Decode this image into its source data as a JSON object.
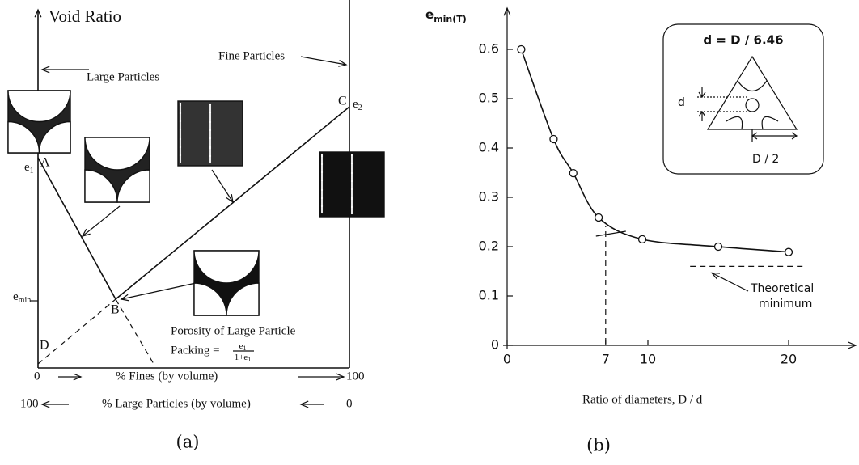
{
  "diagram": {
    "y_axis_label": "Void Ratio",
    "fine_label": "Fine Particles",
    "large_label": "Large Particles",
    "point_a": "A",
    "point_b": "B",
    "point_c": "C",
    "point_d": "D",
    "e1": {
      "main": "e",
      "sub": "1"
    },
    "e2": {
      "main": "e",
      "sub": "2"
    },
    "emin": {
      "main": "e",
      "sub": "min"
    },
    "porosity_line1": "Porosity of Large Particle",
    "porosity_line2": "Packing =",
    "fraction_top": {
      "main": "e",
      "sub": "1"
    },
    "fraction_bottom": {
      "main": "1+e",
      "sub": "1"
    },
    "fines_start": "0",
    "fines_label": "% Fines (by volume)",
    "fines_end": "100",
    "large_start": "100",
    "large_label_axis": "% Large Particles (by volume)",
    "large_end": "0",
    "caption": "(a)"
  },
  "chart_data": {
    "type": "line",
    "y_label_main": "e",
    "y_label_sub": "min(T)",
    "x_label": "Ratio of diameters,   D / d",
    "x": [
      1,
      3.3,
      4.7,
      6.5,
      9.6,
      15,
      20
    ],
    "values": [
      0.6,
      0.418,
      0.349,
      0.259,
      0.215,
      0.2,
      0.189
    ],
    "xlim": [
      0,
      24
    ],
    "xticks": [
      0,
      7,
      10,
      20
    ],
    "ylim": [
      0,
      0.66
    ],
    "yticks": [
      0,
      0.1,
      0.2,
      0.3,
      0.4,
      0.5,
      0.6
    ],
    "theoretical_min": 0.16,
    "theoretical_label": [
      "Theoretical",
      "minimum"
    ],
    "inset": {
      "formula": "d  =  D / 6.46",
      "d": "d",
      "half": "D / 2"
    },
    "caption": "(b)",
    "color": "#111111"
  }
}
